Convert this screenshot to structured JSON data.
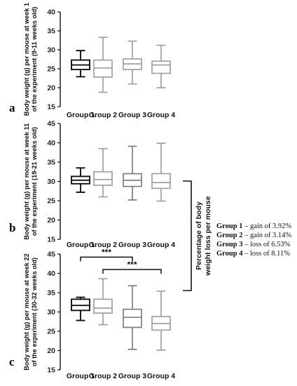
{
  "chart_data": [
    {
      "type": "box",
      "panel_letter": "a",
      "ylabel": "Body weight (g) per mouse at week 1 of the experiment (9-11 weeks old)",
      "ylim": [
        15,
        40
      ],
      "yticks": [
        15,
        20,
        25,
        30,
        35,
        40
      ],
      "categories": [
        "Group 1",
        "Group 2",
        "Group 3",
        "Group 4"
      ],
      "box_colors": [
        "#111111",
        "#a0a0a0",
        "#a0a0a0",
        "#a0a0a0"
      ],
      "boxes": [
        {
          "min": 22.9,
          "q1": 24.8,
          "median": 26.0,
          "q3": 27.3,
          "max": 29.8
        },
        {
          "min": 18.8,
          "q1": 22.8,
          "median": 25.2,
          "q3": 27.3,
          "max": 33.3
        },
        {
          "min": 21.0,
          "q1": 24.8,
          "median": 26.3,
          "q3": 27.6,
          "max": 32.3
        },
        {
          "min": 20.0,
          "q1": 23.8,
          "median": 26.0,
          "q3": 27.0,
          "max": 31.2
        }
      ]
    },
    {
      "type": "box",
      "panel_letter": "b",
      "ylabel": "Body weight (g) per mouse at week 11 of the experiment (19-21 weeks old)",
      "ylim": [
        15,
        45
      ],
      "yticks": [
        15,
        20,
        25,
        30,
        35,
        40,
        45
      ],
      "categories": [
        "Group 1",
        "Group 2",
        "Group 3",
        "Group 4"
      ],
      "box_colors": [
        "#111111",
        "#a0a0a0",
        "#808080",
        "#a0a0a0"
      ],
      "boxes": [
        {
          "min": 27.2,
          "q1": 29.4,
          "median": 30.3,
          "q3": 31.3,
          "max": 33.5
        },
        {
          "min": 26.0,
          "q1": 29.0,
          "median": 30.5,
          "q3": 32.5,
          "max": 38.5
        },
        {
          "min": 25.2,
          "q1": 28.7,
          "median": 30.3,
          "q3": 32.0,
          "max": 39.1
        },
        {
          "min": 24.9,
          "q1": 28.2,
          "median": 29.7,
          "q3": 32.0,
          "max": 39.9
        }
      ]
    },
    {
      "type": "box",
      "panel_letter": "c",
      "ylabel": "Body weight (g) per mouse at week 22 of the experiment (30-32 weeks old)",
      "ylim": [
        15,
        45
      ],
      "yticks": [
        15,
        20,
        25,
        30,
        35,
        40,
        45
      ],
      "categories": [
        "Group 1",
        "Group 2",
        "Group 3",
        "Group 4"
      ],
      "box_colors": [
        "#111111",
        "#a0a0a0",
        "#808080",
        "#a0a0a0"
      ],
      "boxes": [
        {
          "min": 27.8,
          "q1": 30.4,
          "median": 31.7,
          "q3": 33.3,
          "max": 33.8
        },
        {
          "min": 26.7,
          "q1": 29.7,
          "median": 31.0,
          "q3": 33.3,
          "max": 38.6
        },
        {
          "min": 20.3,
          "q1": 26.0,
          "median": 28.6,
          "q3": 30.7,
          "max": 36.8
        },
        {
          "min": 20.1,
          "q1": 25.3,
          "median": 27.0,
          "q3": 28.8,
          "max": 35.4
        }
      ],
      "significance": [
        {
          "from": "Group 1",
          "to": "Group 3",
          "label": "***"
        },
        {
          "from": "Group 2",
          "to": "Group 4",
          "label": "***"
        }
      ]
    }
  ],
  "side_label": {
    "line1": "Percentage of body",
    "line2": "weight loss per mouse"
  },
  "legend": [
    {
      "group": "Group 1",
      "text": " – gain of  3.92%"
    },
    {
      "group": "Group 2",
      "text": " – gain of  3.14%"
    },
    {
      "group": "Group 3",
      "text": " – loss  of  6.53%"
    },
    {
      "group": "Group 4",
      "text": " – loss  of  8.11%"
    }
  ]
}
